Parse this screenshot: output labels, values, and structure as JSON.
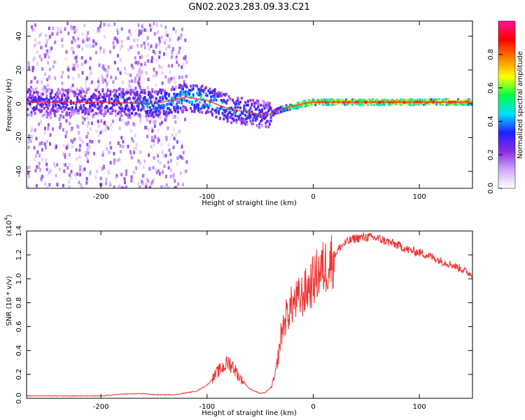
{
  "title": "GN02.2023.283.09.33.C21",
  "chart_data": [
    {
      "type": "heatmap",
      "title": "GN02.2023.283.09.33.C21",
      "xlabel": "Height of straight line (km)",
      "ylabel": "Frequency (Hz)",
      "xlim": [
        -270,
        150
      ],
      "ylim": [
        -50,
        49
      ],
      "xticks": [
        -200,
        -100,
        0,
        100
      ],
      "yticks": [
        -40,
        -20,
        0,
        20,
        40
      ],
      "colorbar": {
        "label": "Normalized spectral amplitude",
        "range": [
          0,
          1
        ],
        "ticks": [
          "0.0",
          "0.2",
          "0.4",
          "0.6",
          "0.8"
        ],
        "colors": [
          "#ffffff",
          "#d0a8ff",
          "#8a2be2",
          "#2020ff",
          "#00e0ff",
          "#00ff40",
          "#ffff00",
          "#ff8000",
          "#ff0000",
          "#ff1493"
        ]
      },
      "ridge": {
        "x": [
          -270,
          -200,
          -150,
          -120,
          -100,
          -80,
          -60,
          -45,
          -30,
          -10,
          0,
          20,
          50,
          80,
          100,
          150
        ],
        "frequency": [
          1,
          1,
          0,
          4,
          2,
          -3,
          -5,
          -7,
          -3,
          0,
          1,
          1,
          1,
          1,
          1,
          1
        ],
        "normalized_amplitude": [
          0.3,
          0.3,
          0.4,
          0.45,
          0.45,
          0.4,
          0.35,
          0.3,
          0.55,
          0.75,
          0.8,
          0.82,
          0.85,
          0.85,
          0.85,
          0.85
        ]
      }
    },
    {
      "type": "line",
      "xlabel": "Height of straight line (km)",
      "ylabel": "SNR (10 * v/v)",
      "scale_label": "(x10",
      "scale_exponent": "4",
      "xlim": [
        -270,
        150
      ],
      "ylim": [
        0,
        1.4
      ],
      "xticks": [
        -200,
        -100,
        0,
        100
      ],
      "yticks": [
        "0.0",
        "0.2",
        "0.4",
        "0.6",
        "0.8",
        "1.0",
        "1.2",
        "1.4"
      ],
      "series": [
        {
          "color": "#ee3333",
          "x": [
            -270,
            -200,
            -180,
            -160,
            -150,
            -130,
            -110,
            -100,
            -90,
            -80,
            -75,
            -70,
            -60,
            -50,
            -45,
            -40,
            -36,
            -33,
            -30,
            -25,
            -20,
            -15,
            -10,
            -5,
            0,
            5,
            10,
            15,
            20,
            25,
            30,
            40,
            50,
            60,
            70,
            80,
            90,
            100,
            110,
            120,
            130,
            140,
            150
          ],
          "y": [
            0.02,
            0.02,
            0.035,
            0.04,
            0.03,
            0.03,
            0.06,
            0.11,
            0.22,
            0.3,
            0.26,
            0.18,
            0.08,
            0.04,
            0.05,
            0.09,
            0.18,
            0.35,
            0.55,
            0.7,
            0.78,
            0.82,
            0.86,
            0.92,
            0.98,
            1.05,
            1.09,
            1.13,
            1.2,
            1.26,
            1.3,
            1.34,
            1.35,
            1.34,
            1.31,
            1.28,
            1.24,
            1.22,
            1.19,
            1.15,
            1.12,
            1.08,
            1.03
          ]
        }
      ]
    }
  ]
}
